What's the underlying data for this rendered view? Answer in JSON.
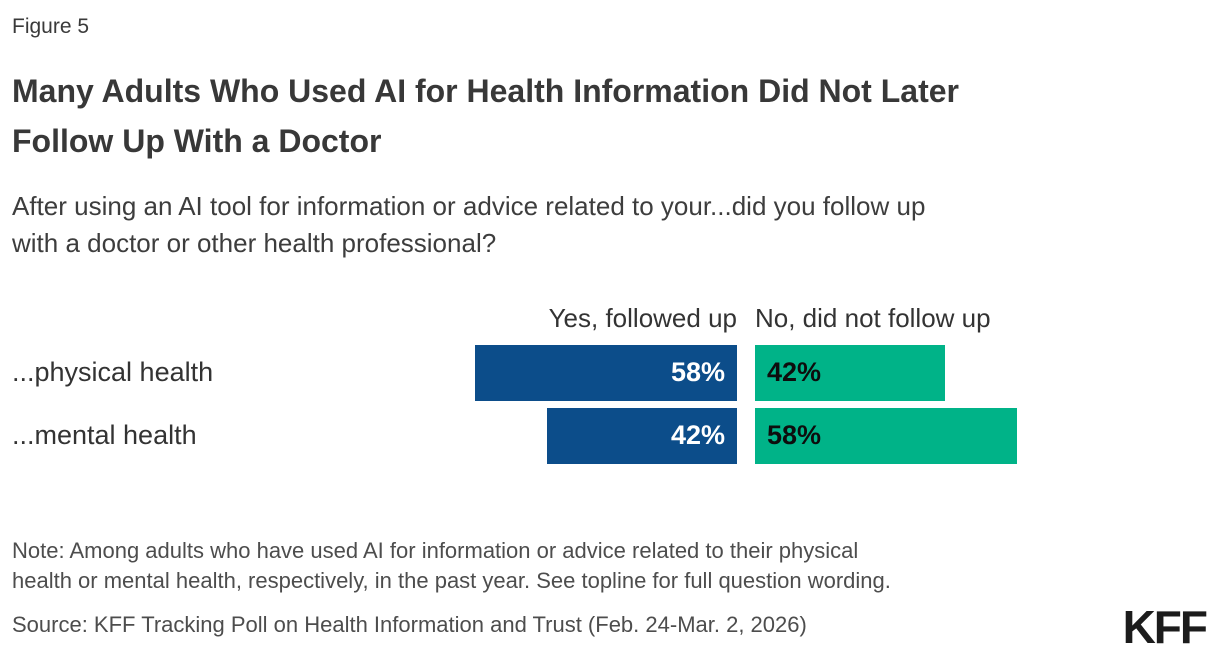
{
  "figure_label": "Figure 5",
  "title_lines": [
    "Many Adults Who Used AI for Health Information Did Not Later",
    "Follow Up With a Doctor"
  ],
  "subtitle_lines": [
    "After using an AI tool for information or advice related to your...did you follow up",
    "with a doctor or other health professional?"
  ],
  "note_lines": [
    "Note: Among adults who have used AI for information or advice related to their physical",
    "health or mental health, respectively, in the past year. See topline for full question wording."
  ],
  "source": "Source: KFF Tracking Poll on Health Information and Trust (Feb. 24-Mar. 2, 2026)",
  "logo_text": "KFF",
  "chart_data": {
    "type": "bar",
    "orientation": "horizontal",
    "title": "Many Adults Who Used AI for Health Information Did Not Later Follow Up With a Doctor",
    "categories": [
      "...physical health",
      "...mental health"
    ],
    "series": [
      {
        "name": "Yes, followed up",
        "values": [
          58,
          42
        ],
        "color": "#0c4d8a",
        "label_color": "#ffffff"
      },
      {
        "name": "No, did not follow up",
        "values": [
          42,
          58
        ],
        "color": "#00b388",
        "label_color": "#0d0d0d"
      }
    ],
    "value_suffix": "%",
    "xlim": [
      0,
      100
    ],
    "grid": false,
    "legend_position": "column-headers-above-bars",
    "value_labels": "inside-bars"
  }
}
